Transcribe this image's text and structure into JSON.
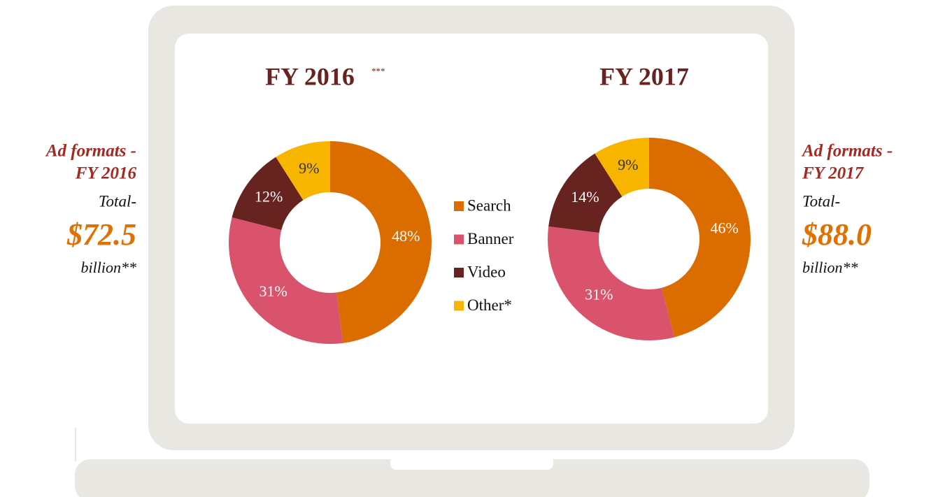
{
  "chart_data": [
    {
      "type": "donut",
      "title": "FY 2016",
      "title_note": "***",
      "categories": [
        "Search",
        "Banner",
        "Video",
        "Other*"
      ],
      "values": [
        48,
        31,
        12,
        9
      ],
      "value_labels": [
        "48%",
        "31%",
        "12%",
        "9%"
      ],
      "colors": [
        "#db6c00",
        "#d9536c",
        "#66231f",
        "#f7b500"
      ],
      "label_colors": [
        "#ffffff",
        "#ffffff",
        "#ffffff",
        "#333333"
      ],
      "side_note": {
        "heading": [
          "Ad formats -",
          "FY 2016"
        ],
        "lead": "Total-",
        "total": "$72.5",
        "unit": "billion**"
      }
    },
    {
      "type": "donut",
      "title": "FY 2017",
      "categories": [
        "Search",
        "Banner",
        "Video",
        "Other*"
      ],
      "values": [
        46,
        31,
        14,
        9
      ],
      "value_labels": [
        "46%",
        "31%",
        "14%",
        "9%"
      ],
      "colors": [
        "#db6c00",
        "#d9536c",
        "#66231f",
        "#f7b500"
      ],
      "label_colors": [
        "#ffffff",
        "#ffffff",
        "#ffffff",
        "#333333"
      ],
      "side_note": {
        "heading": [
          "Ad formats -",
          "FY 2017"
        ],
        "lead": "Total-",
        "total": "$88.0",
        "unit": "billion**"
      }
    }
  ]
}
